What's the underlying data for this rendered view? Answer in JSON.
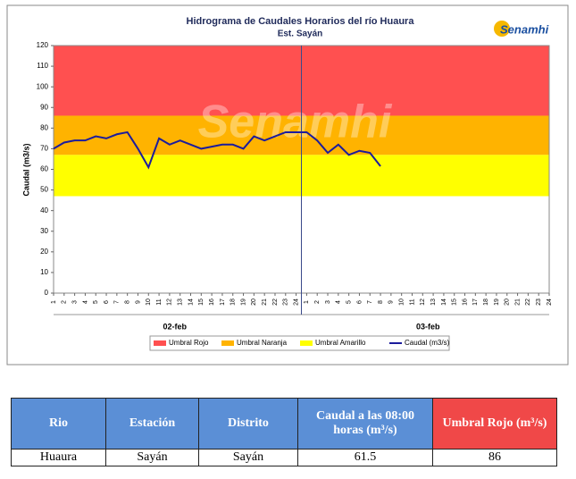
{
  "chart_data": {
    "type": "line",
    "title": "Hidrograma de Caudales Horarios  del río Huaura",
    "subtitle": "Est. Sayán",
    "logo": "Senamhi",
    "y_label": "Caudal (m3/s)",
    "categories": [
      "1",
      "2",
      "3",
      "4",
      "5",
      "6",
      "7",
      "8",
      "9",
      "10",
      "11",
      "12",
      "13",
      "14",
      "15",
      "16",
      "17",
      "18",
      "19",
      "20",
      "21",
      "22",
      "23",
      "24",
      "1",
      "2",
      "3",
      "4",
      "5",
      "6",
      "7",
      "8",
      "9",
      "10",
      "11",
      "12",
      "13",
      "14",
      "15",
      "16",
      "17",
      "18",
      "19",
      "20",
      "21",
      "22",
      "23",
      "24"
    ],
    "x_groups": [
      "02-feb",
      "03-feb"
    ],
    "ylim": [
      0,
      120
    ],
    "yticks": [
      0,
      10,
      20,
      30,
      40,
      50,
      60,
      70,
      80,
      90,
      100,
      110,
      120
    ],
    "bands": [
      {
        "name": "Umbral Rojo",
        "color": "#ff5050",
        "from": 86,
        "to": 120
      },
      {
        "name": "Umbral Naranja",
        "color": "#ffb300",
        "from": 67,
        "to": 86
      },
      {
        "name": "Umbral Amarillo",
        "color": "#ffff00",
        "from": 47,
        "to": 67
      }
    ],
    "series": [
      {
        "name": "Caudal (m3/s)",
        "color": "#1c1c9c",
        "values": [
          70,
          73,
          74,
          74,
          76,
          75,
          77,
          78,
          70,
          61,
          75,
          72,
          74,
          72,
          70,
          71,
          72,
          72,
          70,
          76,
          74,
          76,
          78,
          78,
          78,
          74,
          68,
          72,
          67,
          69,
          68,
          61.5,
          null,
          null,
          null,
          null,
          null,
          null,
          null,
          null,
          null,
          null,
          null,
          null,
          null,
          null,
          null,
          null
        ]
      }
    ]
  },
  "table": {
    "header": [
      "Rio",
      "Estación",
      "Distrito",
      "Caudal a las 08:00 horas (m³/s)",
      "Umbral Rojo (m³/s)"
    ],
    "rows": [
      [
        "Huaura",
        "Sayán",
        "Sayán",
        61.5,
        86
      ]
    ]
  }
}
